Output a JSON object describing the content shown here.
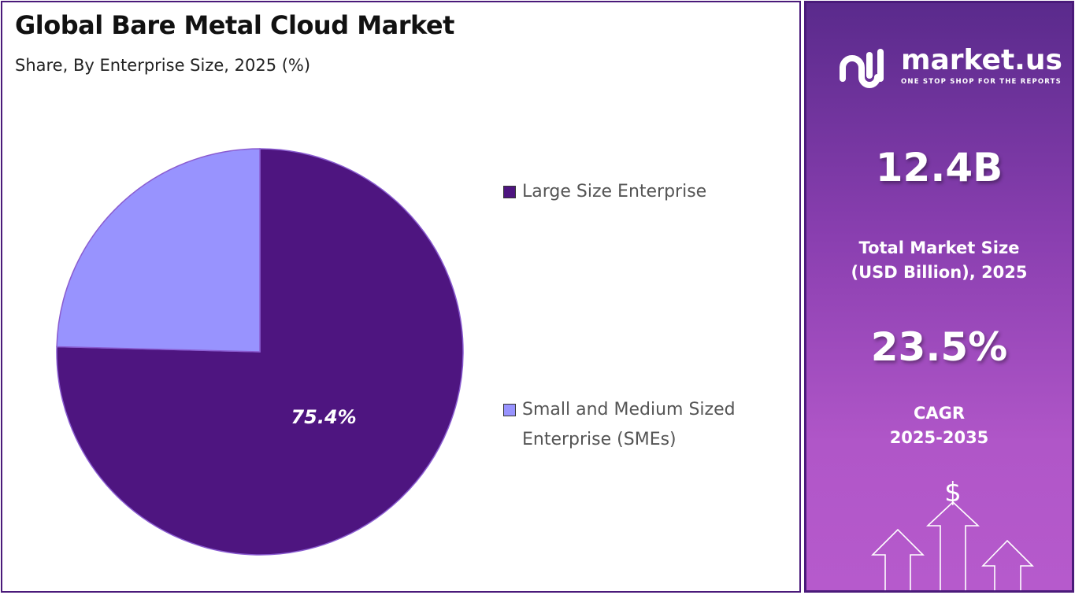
{
  "chart_data": {
    "type": "pie",
    "title": "Global Bare Metal Cloud Market",
    "subtitle": "Share, By Enterprise Size, 2025 (%)",
    "legend_placement": "right",
    "slices": [
      {
        "name": "Large Size Enterprise",
        "value": 75.4,
        "label": "75.4%",
        "color": "#4e1580"
      },
      {
        "name": "Small and Medium Sized Enterprise (SMEs)",
        "value": 24.6,
        "label": "",
        "color": "#9893fe"
      }
    ]
  },
  "legend": {
    "items": [
      "Large Size Enterprise",
      "Small and Medium Sized",
      "Enterprise (SMEs)"
    ]
  },
  "panel": {
    "brand": "market.us",
    "tagline": "ONE STOP SHOP FOR THE REPORTS",
    "market_size": "12.4B",
    "market_size_label_1": "Total Market Size",
    "market_size_label_2": "(USD Billion), 2025",
    "cagr": "23.5%",
    "cagr_label_1": "CAGR",
    "cagr_label_2": "2025-2035",
    "icon": "growth-arrows-dollar-icon",
    "dollar": "$"
  }
}
